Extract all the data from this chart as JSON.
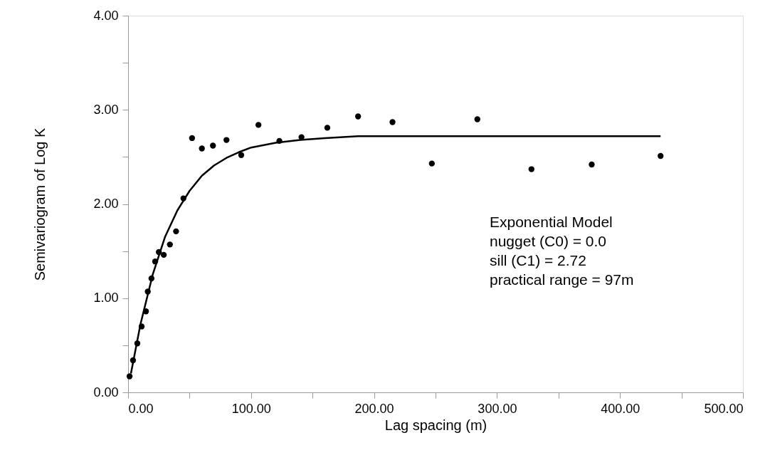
{
  "chart_data": {
    "type": "scatter",
    "xlabel": "Lag spacing (m)",
    "ylabel": "Semivariogram of Log K",
    "series": [
      {
        "color": "#000000",
        "marker": "circle",
        "x": [
          1.2,
          4,
          7.5,
          11,
          14.5,
          16,
          19,
          22,
          25,
          29,
          34,
          39,
          45,
          52,
          60,
          69,
          80,
          92,
          106,
          123,
          141,
          162,
          187,
          215,
          247,
          284,
          328,
          377,
          433
        ],
        "values": [
          0.17,
          0.34,
          0.52,
          0.7,
          0.86,
          1.07,
          1.21,
          1.39,
          1.49,
          1.46,
          1.57,
          1.71,
          2.06,
          2.7,
          2.59,
          2.62,
          2.68,
          2.52,
          2.84,
          2.67,
          2.71,
          2.81,
          2.93,
          2.87,
          2.43,
          2.9,
          2.37,
          2.42,
          2.51
        ]
      },
      {
        "type": "line",
        "color": "#000000",
        "marker": "none",
        "line_style": "solid",
        "x": [
          2.3,
          10,
          20,
          30,
          40,
          50,
          60,
          70,
          80,
          90,
          100,
          120,
          140,
          160,
          187,
          433
        ],
        "values": [
          0.2,
          0.72,
          1.25,
          1.65,
          1.93,
          2.14,
          2.3,
          2.41,
          2.49,
          2.55,
          2.6,
          2.65,
          2.68,
          2.7,
          2.72,
          2.72
        ]
      }
    ],
    "xlim": [
      0,
      500
    ],
    "ylim": [
      0,
      4
    ],
    "xticks": [
      {
        "value": 0,
        "label": "0.00"
      },
      {
        "value": 50,
        "label": null
      },
      {
        "value": 100,
        "label": "100.00"
      },
      {
        "value": 150,
        "label": null
      },
      {
        "value": 200,
        "label": "200.00"
      },
      {
        "value": 250,
        "label": null
      },
      {
        "value": 300,
        "label": "300.00"
      },
      {
        "value": 350,
        "label": null
      },
      {
        "value": 400,
        "label": "400.00"
      },
      {
        "value": 450,
        "label": null
      },
      {
        "value": 500,
        "label": "500.00"
      }
    ],
    "yticks": [
      {
        "value": 0,
        "label": "0.00"
      },
      {
        "value": 0.5,
        "label": null
      },
      {
        "value": 1,
        "label": "1.00"
      },
      {
        "value": 1.5,
        "label": null
      },
      {
        "value": 2,
        "label": "2.00"
      },
      {
        "value": 2.5,
        "label": null
      },
      {
        "value": 3,
        "label": "3.00"
      },
      {
        "value": 3.5,
        "label": null
      },
      {
        "value": 4,
        "label": "4.00"
      }
    ],
    "grid": false,
    "annotations": [
      "Exponential Model",
      "nugget (C0) = 0.0",
      "sill  (C1) = 2.72",
      "practical range = 97m"
    ]
  }
}
